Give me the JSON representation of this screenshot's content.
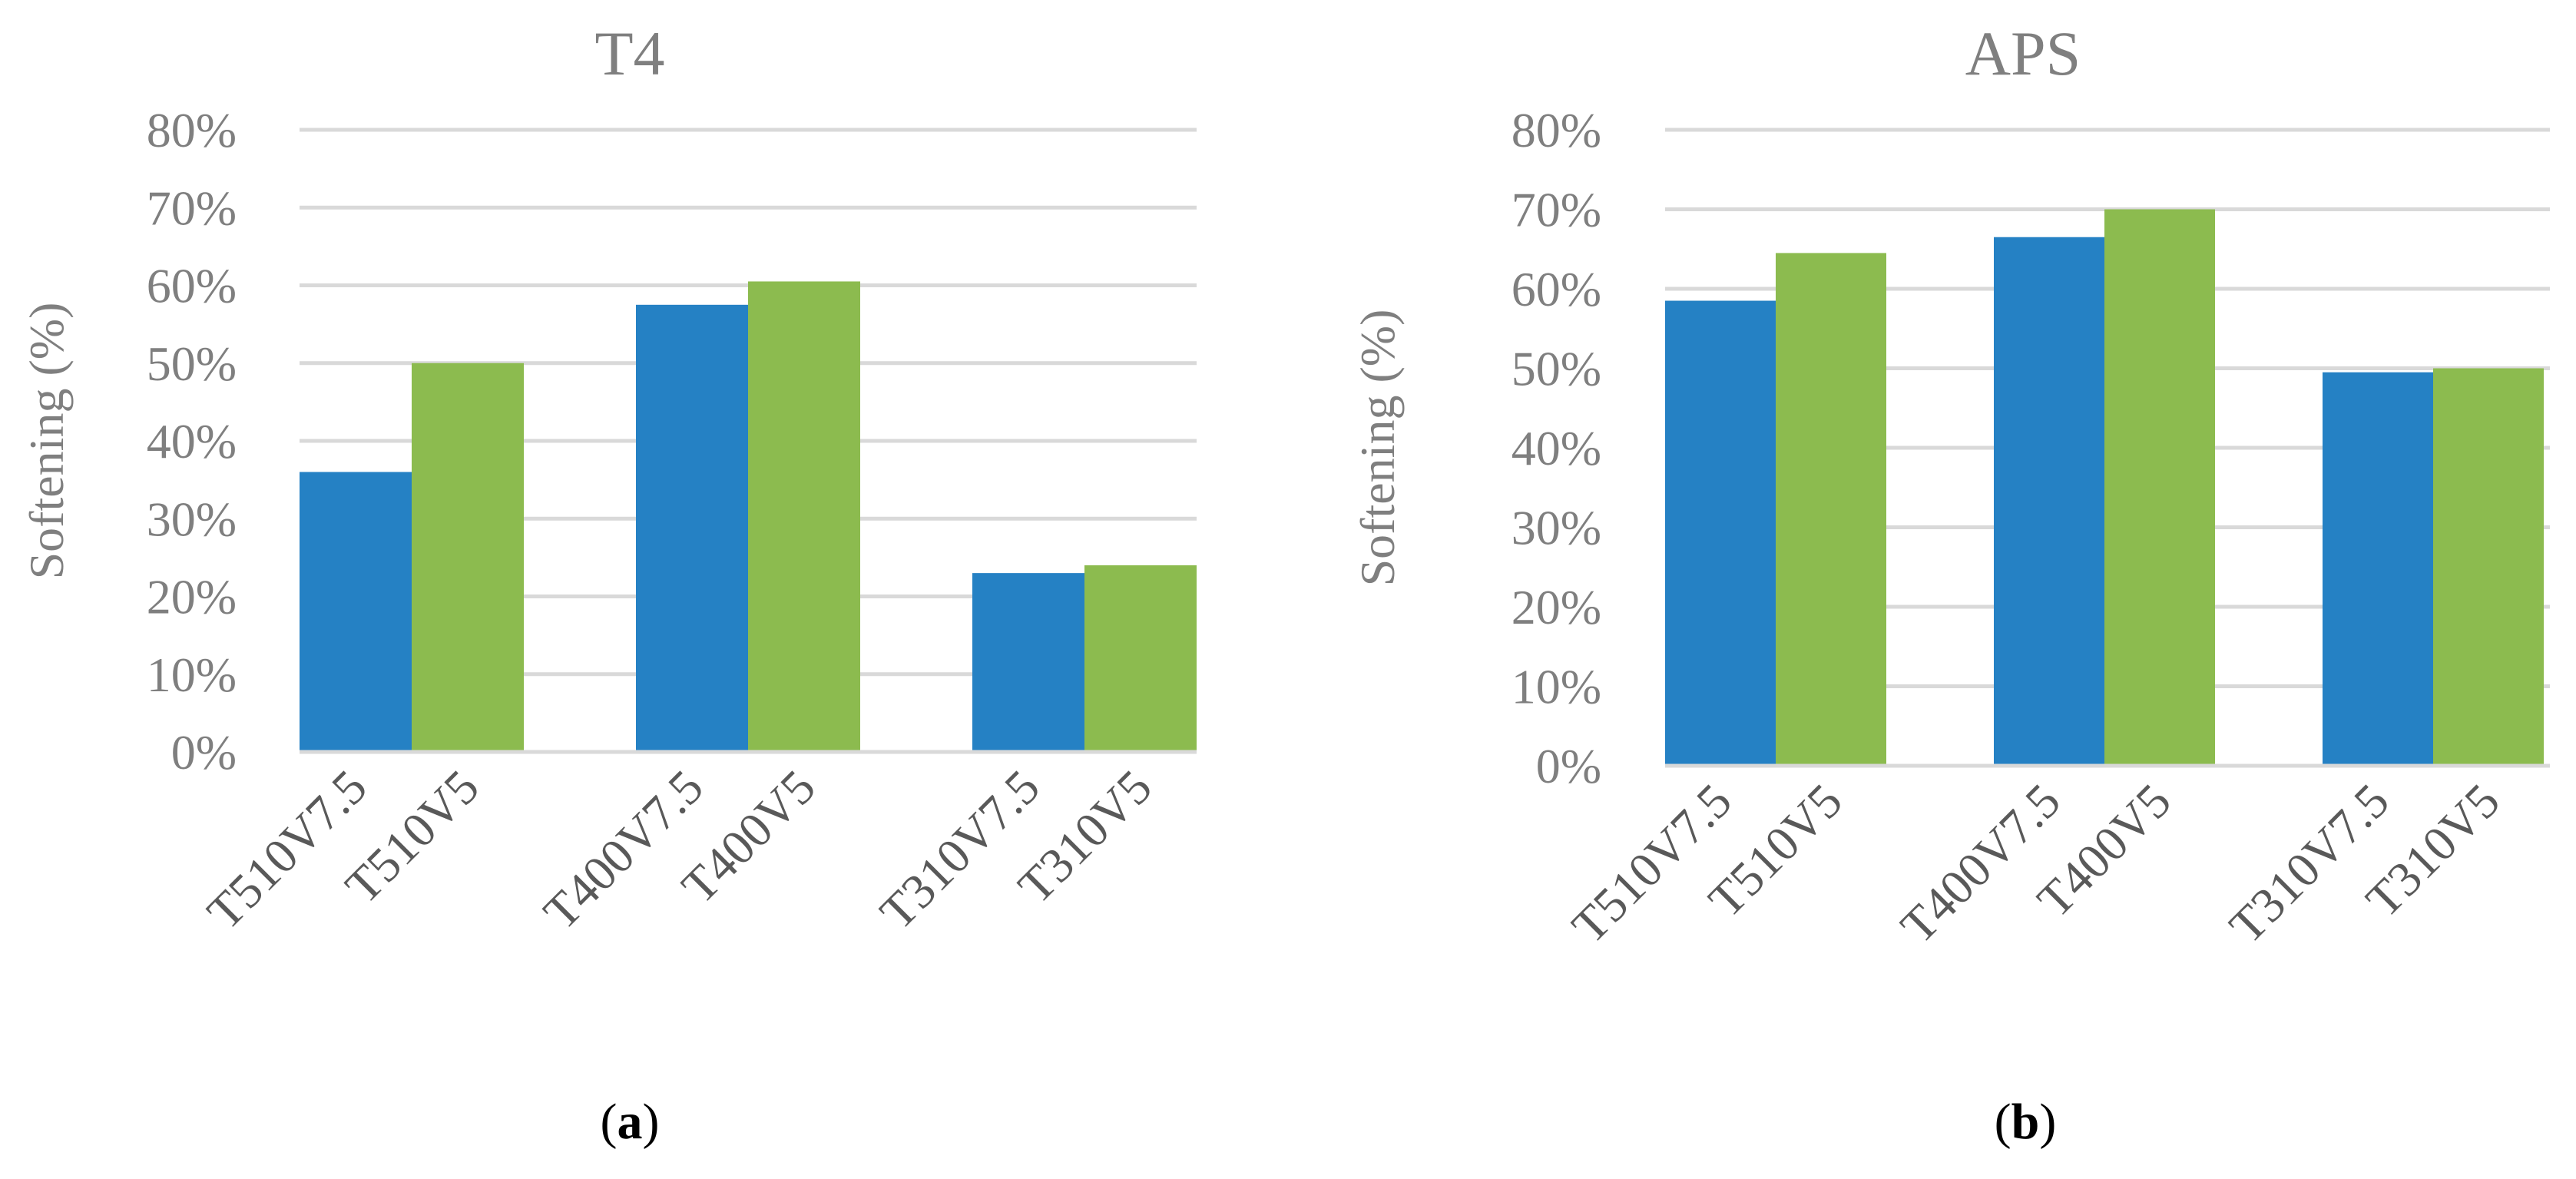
{
  "colors": {
    "series_1": "#2581c4",
    "series_2": "#8cbb4f",
    "grid": "#d9d9d9",
    "axis": "#d9d9d9",
    "text": "#7f7f7f",
    "tick_text": "#595959"
  },
  "chart_data": [
    {
      "type": "bar",
      "title": "T4",
      "ylabel": "Softening (%)",
      "xlabel": "",
      "ylim": [
        0,
        80
      ],
      "yticks": [
        "0%",
        "10%",
        "20%",
        "30%",
        "40%",
        "50%",
        "60%",
        "70%",
        "80%"
      ],
      "grid": true,
      "legend": "none",
      "groups": [
        {
          "bars": [
            {
              "label": "T510V7.5",
              "value": 36
            },
            {
              "label": "T510V5",
              "value": 50
            }
          ]
        },
        {
          "bars": [
            {
              "label": "T400V7.5",
              "value": 57.5
            },
            {
              "label": "T400V5",
              "value": 60.5
            }
          ]
        },
        {
          "bars": [
            {
              "label": "T310V7.5",
              "value": 23
            },
            {
              "label": "T310V5",
              "value": 24
            }
          ]
        }
      ],
      "caption": {
        "open": "(",
        "letter": "a",
        "close": ")"
      }
    },
    {
      "type": "bar",
      "title": "APS",
      "ylabel": "Softening (%)",
      "xlabel": "",
      "ylim": [
        0,
        80
      ],
      "yticks": [
        "0%",
        "10%",
        "20%",
        "30%",
        "40%",
        "50%",
        "60%",
        "70%",
        "80%"
      ],
      "grid": true,
      "legend": "none",
      "groups": [
        {
          "bars": [
            {
              "label": "T510V7.5",
              "value": 58.5
            },
            {
              "label": "T510V5",
              "value": 64.5
            }
          ]
        },
        {
          "bars": [
            {
              "label": "T400V7.5",
              "value": 66.5
            },
            {
              "label": "T400V5",
              "value": 70
            }
          ]
        },
        {
          "bars": [
            {
              "label": "T310V7.5",
              "value": 49.5
            },
            {
              "label": "T310V5",
              "value": 50
            }
          ]
        }
      ],
      "caption": {
        "open": "(",
        "letter": "b",
        "close": ")"
      }
    }
  ]
}
